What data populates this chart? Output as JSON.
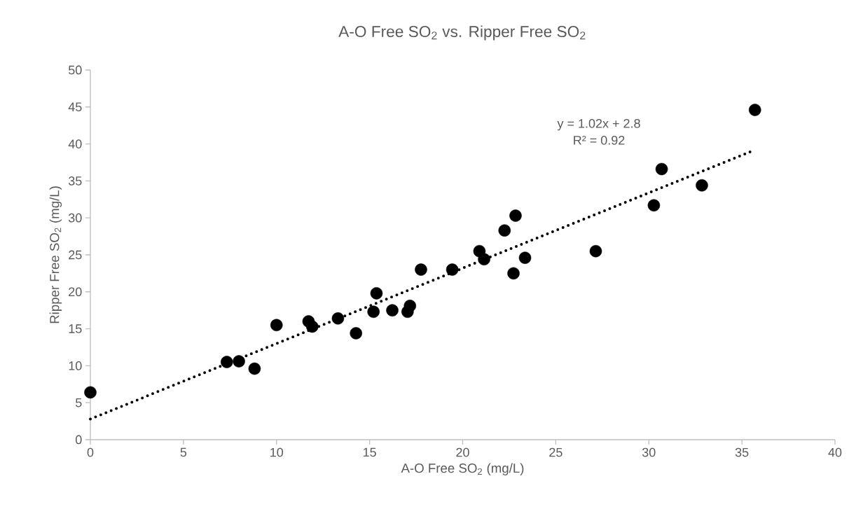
{
  "chart_data": {
    "type": "scatter",
    "title": "A-O Free SO$_{2}$ vs. Ripper Free SO$_{2}$",
    "xlabel": "A-O Free SO$_{2}$ (mg/L)",
    "ylabel": "Ripper Free SO$_{2}$ (mg/L)",
    "x": [
      0,
      7.33,
      7.98,
      8.82,
      10.0,
      11.72,
      11.92,
      13.3,
      14.27,
      15.21,
      15.37,
      16.22,
      17.04,
      17.17,
      17.76,
      19.44,
      20.9,
      21.15,
      22.25,
      22.73,
      22.84,
      23.35,
      27.15,
      30.27,
      30.69,
      32.85,
      35.7
    ],
    "series": [
      {
        "color": "#000000",
        "marker": "circle",
        "values": [
          6.4,
          10.5,
          10.6,
          9.6,
          15.5,
          16.0,
          15.3,
          16.4,
          14.4,
          17.3,
          19.8,
          17.5,
          17.3,
          18.1,
          23.0,
          23.0,
          25.5,
          24.4,
          28.3,
          22.5,
          30.3,
          24.6,
          25.5,
          31.7,
          36.6,
          34.4,
          44.6
        ]
      },
      {
        "type": "line",
        "color": "#000000",
        "marker": "none",
        "line_style": "dotted",
        "x": [
          0,
          35.7
        ],
        "values": [
          2.8,
          39.2
        ]
      }
    ],
    "annotations": [
      "y = 1.02x + 2.8",
      "R² = 0.92"
    ],
    "xlim": [
      0,
      40
    ],
    "ylim": [
      0,
      50
    ],
    "xticks": [
      0,
      5,
      10,
      15,
      20,
      25,
      30,
      35,
      40
    ],
    "yticks": [
      0,
      5,
      10,
      15,
      20,
      25,
      30,
      35,
      40,
      45,
      50
    ],
    "grid": false
  }
}
